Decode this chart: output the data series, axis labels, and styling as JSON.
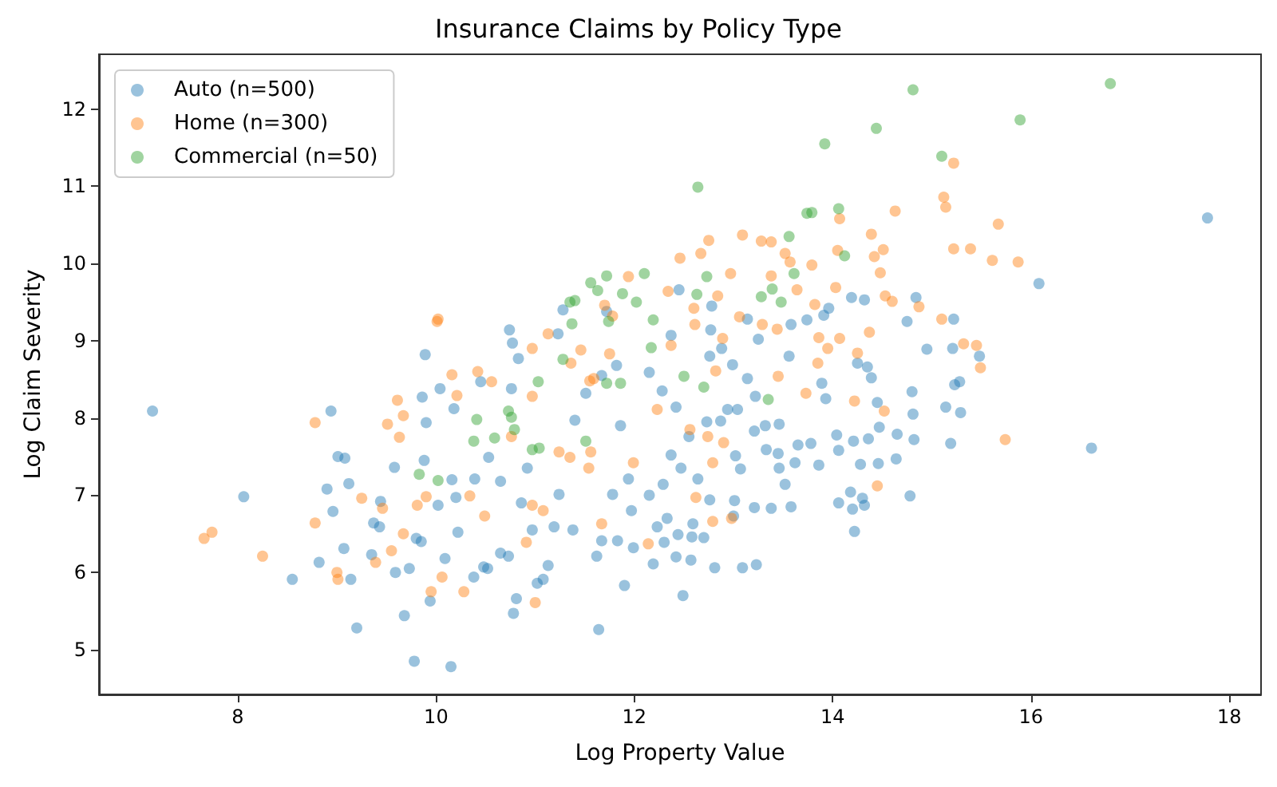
{
  "chart_data": {
    "type": "scatter",
    "title": "Insurance Claims by Policy Type",
    "xlabel": "Log Property Value",
    "ylabel": "Log Claim Severity",
    "xlim": [
      6.6,
      18.32
    ],
    "xticks": [
      8,
      10,
      12,
      14,
      16,
      18
    ],
    "ylim": [
      4.42,
      12.71
    ],
    "yticks": [
      5,
      6,
      7,
      8,
      9,
      10,
      11,
      12
    ],
    "legend": "top left",
    "grid": false,
    "marker": "circle",
    "series": [
      {
        "name": "Auto (n=500)",
        "color": "#1f77b4",
        "x": [
          7.14,
          8.06,
          8.55,
          8.82,
          8.9,
          8.94,
          8.96,
          9.01,
          9.08,
          9.07,
          9.12,
          9.14,
          9.2,
          9.37,
          9.44,
          9.43,
          9.35,
          9.58,
          9.59,
          9.68,
          9.73,
          9.78,
          9.8,
          9.85,
          9.86,
          9.89,
          9.9,
          9.88,
          9.94,
          10.04,
          10.02,
          10.09,
          10.15,
          10.18,
          10.16,
          10.2,
          10.22,
          10.38,
          10.39,
          10.48,
          10.52,
          10.45,
          10.53,
          10.65,
          10.65,
          10.73,
          10.74,
          10.77,
          10.83,
          10.78,
          10.81,
          10.76,
          10.86,
          10.92,
          10.97,
          11.02,
          11.08,
          11.13,
          11.23,
          11.28,
          11.19,
          11.24,
          11.38,
          11.4,
          11.51,
          11.67,
          11.62,
          11.64,
          11.67,
          11.72,
          11.82,
          11.83,
          11.9,
          11.86,
          11.94,
          11.78,
          11.99,
          11.97,
          17.78,
          16.08,
          16.61,
          14.84,
          14.75,
          15.22,
          14.95,
          15.21,
          15.48,
          15.28,
          15.23,
          15.14,
          15.29,
          15.19,
          14.8,
          14.81,
          14.82,
          14.64,
          14.78,
          14.65,
          14.47,
          14.36,
          14.45,
          14.28,
          14.46,
          14.3,
          14.32,
          14.06,
          14.2,
          14.22,
          14.18,
          14.04,
          14.06,
          14.21,
          14.25,
          14.35,
          14.39,
          14.19,
          14.32,
          13.96,
          13.91,
          13.93,
          13.89,
          13.86,
          13.62,
          13.78,
          13.65,
          13.58,
          13.52,
          13.46,
          13.45,
          13.46,
          13.56,
          13.74,
          13.58,
          13.25,
          13.14,
          12.78,
          12.77,
          12.76,
          12.88,
          12.99,
          13.14,
          13.22,
          13.32,
          13.33,
          13.21,
          13.04,
          12.94,
          12.87,
          12.73,
          13.02,
          13.07,
          13.01,
          13.0,
          13.21,
          13.38,
          13.23,
          13.09,
          12.81,
          12.57,
          12.42,
          12.49,
          12.19,
          12.3,
          12.44,
          12.58,
          12.7,
          12.59,
          12.33,
          12.23,
          12.76,
          12.64,
          12.47,
          12.37,
          12.29,
          12.15,
          12.55,
          12.42,
          12.28,
          12.15,
          12.37,
          12.45
        ],
        "values": [
          8.09,
          6.98,
          5.91,
          6.13,
          7.08,
          8.09,
          6.79,
          7.5,
          7.48,
          6.31,
          7.15,
          5.91,
          5.28,
          6.64,
          6.92,
          6.59,
          6.23,
          7.36,
          6.0,
          5.44,
          6.05,
          4.85,
          6.44,
          6.4,
          8.27,
          8.82,
          7.94,
          7.45,
          5.63,
          8.38,
          6.87,
          6.18,
          4.78,
          8.12,
          7.2,
          6.97,
          6.52,
          5.94,
          7.21,
          6.07,
          6.05,
          8.47,
          7.49,
          7.18,
          6.25,
          6.21,
          9.14,
          8.97,
          8.77,
          5.47,
          5.66,
          8.38,
          6.9,
          7.35,
          6.55,
          5.86,
          5.91,
          6.09,
          9.09,
          9.4,
          6.59,
          7.01,
          6.55,
          7.97,
          8.32,
          8.55,
          6.21,
          5.26,
          6.41,
          9.38,
          8.68,
          6.41,
          5.83,
          7.9,
          7.21,
          7.01,
          6.32,
          6.8,
          10.59,
          9.74,
          7.61,
          9.56,
          9.25,
          9.28,
          8.89,
          8.9,
          8.8,
          8.47,
          8.43,
          8.14,
          8.07,
          7.67,
          8.34,
          8.05,
          7.72,
          7.47,
          6.99,
          7.79,
          7.88,
          7.73,
          8.2,
          7.4,
          7.41,
          6.96,
          6.87,
          6.9,
          6.82,
          6.53,
          7.04,
          7.78,
          7.58,
          7.7,
          8.71,
          8.66,
          8.52,
          9.56,
          9.53,
          9.42,
          9.33,
          8.25,
          8.45,
          7.39,
          7.42,
          7.67,
          7.65,
          6.85,
          7.14,
          7.35,
          7.54,
          7.92,
          8.8,
          9.27,
          9.21,
          9.02,
          9.28,
          9.45,
          9.14,
          8.8,
          8.9,
          8.69,
          8.51,
          8.28,
          7.9,
          7.59,
          7.83,
          8.11,
          8.11,
          7.96,
          7.95,
          7.51,
          7.34,
          6.93,
          6.73,
          6.84,
          6.83,
          6.1,
          6.06,
          6.06,
          6.16,
          6.2,
          5.7,
          6.11,
          6.39,
          6.49,
          6.46,
          6.45,
          6.63,
          6.7,
          6.59,
          6.94,
          7.21,
          7.35,
          7.52,
          7.14,
          7.0,
          7.76,
          8.14,
          8.35,
          8.59,
          9.07,
          9.66
        ]
      },
      {
        "name": "Home (n=300)",
        "color": "#ff7f0e",
        "x": [
          7.66,
          7.74,
          8.25,
          8.78,
          8.78,
          9.0,
          9.01,
          9.25,
          9.39,
          9.46,
          9.55,
          9.61,
          9.51,
          9.63,
          9.67,
          9.67,
          10.01,
          10.02,
          10.16,
          10.21,
          10.42,
          10.56,
          9.9,
          9.81,
          9.95,
          10.06,
          10.28,
          11.0,
          10.91,
          10.49,
          10.34,
          10.97,
          11.13,
          11.46,
          11.55,
          11.59,
          11.36,
          11.7,
          11.94,
          11.78,
          11.75,
          10.97,
          11.24,
          11.35,
          11.56,
          11.54,
          10.97,
          11.08,
          10.76,
          11.99,
          11.67,
          15.22,
          15.12,
          15.14,
          14.63,
          15.67,
          14.39,
          14.51,
          14.42,
          14.48,
          14.07,
          14.05,
          15.22,
          15.39,
          15.61,
          15.87,
          13.09,
          13.28,
          13.38,
          12.75,
          12.46,
          12.67,
          12.97,
          13.52,
          13.57,
          13.79,
          13.64,
          13.38,
          14.03,
          14.53,
          14.6,
          14.87,
          12.84,
          12.6,
          12.34,
          13.82,
          13.29,
          13.44,
          13.06,
          12.61,
          12.37,
          12.89,
          13.86,
          14.07,
          14.37,
          15.1,
          15.32,
          15.45,
          15.49,
          14.25,
          13.95,
          13.85,
          13.45,
          12.82,
          14.22,
          13.73,
          14.52,
          12.74,
          12.9,
          12.56,
          12.23,
          14.45,
          15.74,
          12.79,
          12.98,
          12.14,
          12.62,
          12.79
        ],
        "values": [
          6.44,
          6.52,
          6.21,
          7.94,
          6.64,
          6.0,
          5.91,
          6.96,
          6.13,
          6.83,
          6.28,
          8.23,
          7.92,
          7.75,
          8.03,
          6.5,
          9.25,
          9.28,
          8.56,
          8.29,
          8.6,
          8.47,
          6.98,
          6.87,
          5.75,
          5.94,
          5.75,
          5.61,
          6.39,
          6.73,
          6.99,
          8.9,
          9.09,
          8.88,
          8.48,
          8.51,
          8.71,
          9.46,
          9.83,
          9.32,
          8.83,
          8.28,
          7.56,
          7.49,
          7.56,
          7.35,
          6.87,
          6.8,
          7.76,
          7.42,
          6.63,
          11.3,
          10.86,
          10.73,
          10.68,
          10.51,
          10.38,
          10.18,
          10.09,
          9.88,
          10.58,
          10.17,
          10.19,
          10.19,
          10.04,
          10.02,
          10.37,
          10.29,
          10.28,
          10.3,
          10.07,
          10.13,
          9.87,
          10.13,
          10.02,
          9.98,
          9.66,
          9.84,
          9.69,
          9.58,
          9.51,
          9.44,
          9.58,
          9.42,
          9.64,
          9.47,
          9.21,
          9.15,
          9.31,
          9.21,
          8.94,
          9.03,
          9.04,
          9.03,
          9.11,
          9.28,
          8.96,
          8.94,
          8.65,
          8.84,
          8.9,
          8.71,
          8.54,
          8.61,
          8.22,
          8.32,
          8.09,
          7.76,
          7.68,
          7.85,
          8.11,
          7.12,
          7.72,
          6.66,
          6.7,
          6.37,
          6.97,
          7.42
        ]
      },
      {
        "name": "Commercial (n=50)",
        "color": "#2ca02c",
        "x": [
          14.81,
          16.8,
          15.89,
          14.44,
          13.92,
          15.1,
          12.64,
          13.74,
          13.79,
          14.06,
          14.12,
          13.56,
          13.61,
          12.73,
          12.1,
          12.63,
          13.28,
          13.39,
          13.48,
          12.19,
          12.17,
          12.5,
          12.7,
          13.35,
          11.72,
          11.56,
          11.63,
          11.35,
          11.4,
          11.88,
          12.02,
          11.37,
          11.74,
          11.28,
          11.03,
          11.86,
          10.41,
          10.73,
          10.76,
          10.59,
          10.38,
          10.79,
          10.97,
          11.04,
          11.51,
          9.83,
          10.02,
          11.72
        ],
        "values": [
          12.25,
          12.33,
          11.86,
          11.75,
          11.55,
          11.39,
          10.99,
          10.65,
          10.66,
          10.71,
          10.1,
          10.35,
          9.87,
          9.83,
          9.87,
          9.6,
          9.57,
          9.67,
          9.5,
          9.27,
          8.91,
          8.54,
          8.4,
          8.24,
          9.84,
          9.75,
          9.65,
          9.5,
          9.52,
          9.61,
          9.5,
          9.22,
          9.25,
          8.76,
          8.47,
          8.45,
          7.98,
          8.09,
          8.01,
          7.74,
          7.7,
          7.85,
          7.59,
          7.61,
          7.7,
          7.27,
          7.19,
          8.45
        ]
      }
    ]
  }
}
